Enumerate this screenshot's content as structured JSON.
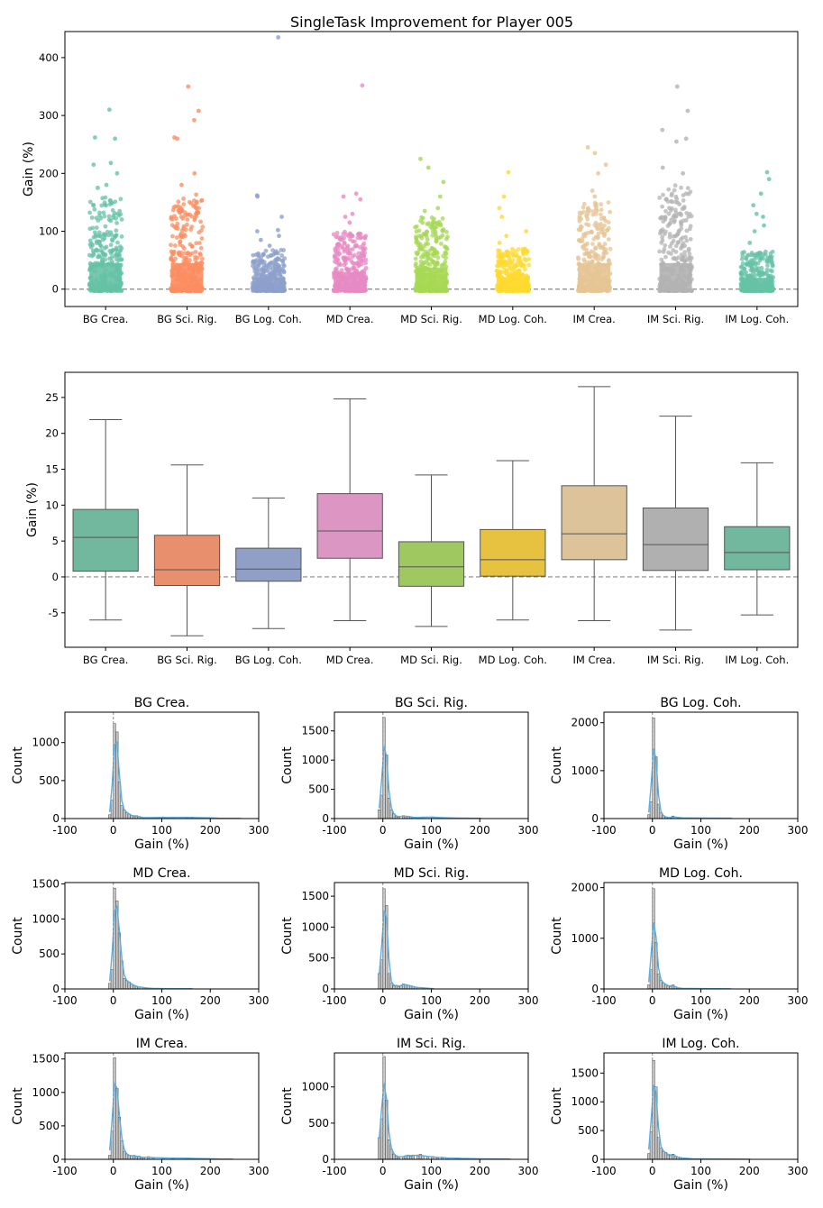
{
  "figure_title": "SingleTask Improvement for Player 005",
  "colors": {
    "strip": [
      "#66c2a5",
      "#fc8d62",
      "#8da0cb",
      "#e78ac3",
      "#a6d854",
      "#ffd92f",
      "#e5c494",
      "#b3b3b3",
      "#66c2a5"
    ],
    "box": [
      "#71b89f",
      "#e8906d",
      "#8f9fc6",
      "#dc96c3",
      "#9fc861",
      "#e6c240",
      "#dcc39a",
      "#b0b0b0",
      "#71b89f"
    ],
    "hist_bar": "#b9b9b9",
    "kde_line": "#5aaee0",
    "zero_line": "#888888"
  },
  "chart_data": [
    {
      "type": "scatter",
      "subtype": "strip",
      "title": "SingleTask Improvement for Player 005",
      "xlabel": "",
      "ylabel": "Gain (%)",
      "categories": [
        "BG Crea.",
        "BG Sci. Rig.",
        "BG Log. Coh.",
        "MD Crea.",
        "MD Sci. Rig.",
        "MD Log. Coh.",
        "IM Crea.",
        "IM Sci. Rig.",
        "IM Log. Coh."
      ],
      "ylim": [
        -30,
        445
      ],
      "yticks": [
        0,
        100,
        200,
        300,
        400
      ],
      "reference_line_y": 0,
      "series": [
        {
          "category": "BG Crea.",
          "dense_max": 160,
          "outliers": [
            175,
            180,
            200,
            215,
            218,
            260,
            262,
            310
          ]
        },
        {
          "category": "BG Sci. Rig.",
          "dense_max": 165,
          "outliers": [
            180,
            200,
            260,
            262,
            292,
            308,
            350
          ]
        },
        {
          "category": "BG Log. Coh.",
          "dense_max": 68,
          "outliers": [
            75,
            85,
            92,
            100,
            102,
            125,
            160,
            162,
            435
          ]
        },
        {
          "category": "MD Crea.",
          "dense_max": 100,
          "outliers": [
            115,
            125,
            130,
            155,
            160,
            165,
            352
          ]
        },
        {
          "category": "MD Sci. Rig.",
          "dense_max": 125,
          "outliers": [
            135,
            140,
            160,
            185,
            210,
            225
          ]
        },
        {
          "category": "MD Log. Coh.",
          "dense_max": 70,
          "outliers": [
            80,
            92,
            100,
            125,
            140,
            160,
            202
          ]
        },
        {
          "category": "IM Crea.",
          "dense_max": 150,
          "outliers": [
            160,
            170,
            200,
            215,
            235,
            245
          ]
        },
        {
          "category": "IM Sci. Rig.",
          "dense_max": 180,
          "outliers": [
            200,
            210,
            255,
            260,
            275,
            308,
            350
          ]
        },
        {
          "category": "IM Log. Coh.",
          "dense_max": 65,
          "outliers": [
            80,
            100,
            110,
            125,
            130,
            145,
            165,
            190,
            202
          ]
        }
      ]
    },
    {
      "type": "box",
      "title": "",
      "xlabel": "",
      "ylabel": "Gain (%)",
      "categories": [
        "BG Crea.",
        "BG Sci. Rig.",
        "BG Log. Coh.",
        "MD Crea.",
        "MD Sci. Rig.",
        "MD Log. Coh.",
        "IM Crea.",
        "IM Sci. Rig.",
        "IM Log. Coh."
      ],
      "ylim": [
        -9.8,
        28.5
      ],
      "yticks": [
        -5,
        0,
        5,
        10,
        15,
        20,
        25
      ],
      "reference_line_y": 0,
      "boxes": [
        {
          "whislo": -6.0,
          "q1": 0.8,
          "med": 5.5,
          "q3": 9.4,
          "whishi": 21.9
        },
        {
          "whislo": -8.2,
          "q1": -1.2,
          "med": 1.0,
          "q3": 5.8,
          "whishi": 15.6
        },
        {
          "whislo": -7.2,
          "q1": -0.6,
          "med": 1.1,
          "q3": 4.0,
          "whishi": 11.0
        },
        {
          "whislo": -6.1,
          "q1": 2.6,
          "med": 6.4,
          "q3": 11.6,
          "whishi": 24.8
        },
        {
          "whislo": -6.9,
          "q1": -1.3,
          "med": 1.4,
          "q3": 4.9,
          "whishi": 14.2
        },
        {
          "whislo": -6.0,
          "q1": 0.1,
          "med": 2.4,
          "q3": 6.6,
          "whishi": 16.2
        },
        {
          "whislo": -6.1,
          "q1": 2.4,
          "med": 6.0,
          "q3": 12.7,
          "whishi": 26.5
        },
        {
          "whislo": -7.4,
          "q1": 0.9,
          "med": 4.5,
          "q3": 9.6,
          "whishi": 22.4
        },
        {
          "whislo": -5.3,
          "q1": 1.0,
          "med": 3.4,
          "q3": 7.0,
          "whishi": 15.9
        }
      ]
    },
    {
      "type": "bar",
      "subtype": "histogram",
      "title": "BG Crea.",
      "xlabel": "Gain (%)",
      "ylabel": "Count",
      "xlim": [
        -100,
        300
      ],
      "xticks": [
        -100,
        0,
        100,
        200,
        300
      ],
      "ylim": [
        0,
        1400
      ],
      "yticks": [
        0,
        500,
        1000
      ],
      "bin_width": 5,
      "bins": [
        [
          -10,
          50
        ],
        [
          -5,
          240
        ],
        [
          0,
          1250
        ],
        [
          5,
          1140
        ],
        [
          10,
          480
        ],
        [
          15,
          170
        ],
        [
          20,
          110
        ],
        [
          25,
          80
        ],
        [
          30,
          60
        ],
        [
          35,
          40
        ],
        [
          40,
          30
        ],
        [
          45,
          40
        ],
        [
          50,
          25
        ],
        [
          55,
          20
        ],
        [
          60,
          10
        ],
        [
          70,
          10
        ],
        [
          100,
          22
        ],
        [
          110,
          8
        ],
        [
          120,
          20
        ],
        [
          150,
          12
        ],
        [
          160,
          20
        ],
        [
          200,
          6
        ],
        [
          215,
          5
        ],
        [
          260,
          4
        ],
        [
          310,
          2
        ]
      ]
    },
    {
      "type": "bar",
      "subtype": "histogram",
      "title": "BG Sci. Rig.",
      "xlabel": "Gain (%)",
      "ylabel": "Count",
      "xlim": [
        -100,
        300
      ],
      "xticks": [
        -100,
        0,
        100,
        200,
        300
      ],
      "ylim": [
        0,
        1820
      ],
      "yticks": [
        0,
        500,
        1000,
        1500
      ],
      "bin_width": 5,
      "bins": [
        [
          -10,
          150
        ],
        [
          -5,
          400
        ],
        [
          0,
          1730
        ],
        [
          5,
          1090
        ],
        [
          10,
          350
        ],
        [
          15,
          150
        ],
        [
          20,
          80
        ],
        [
          25,
          40
        ],
        [
          30,
          25
        ],
        [
          40,
          50
        ],
        [
          45,
          35
        ],
        [
          50,
          40
        ],
        [
          55,
          30
        ],
        [
          60,
          20
        ],
        [
          70,
          15
        ],
        [
          80,
          25
        ],
        [
          100,
          30
        ],
        [
          120,
          10
        ],
        [
          150,
          10
        ],
        [
          200,
          5
        ]
      ]
    },
    {
      "type": "bar",
      "subtype": "histogram",
      "title": "BG Log. Coh.",
      "xlabel": "Gain (%)",
      "ylabel": "Count",
      "xlim": [
        -100,
        300
      ],
      "xticks": [
        -100,
        0,
        100,
        200,
        300
      ],
      "ylim": [
        0,
        2220
      ],
      "yticks": [
        0,
        1000,
        2000
      ],
      "bin_width": 5,
      "bins": [
        [
          -10,
          80
        ],
        [
          -5,
          350
        ],
        [
          0,
          2100
        ],
        [
          5,
          1290
        ],
        [
          10,
          300
        ],
        [
          15,
          120
        ],
        [
          20,
          60
        ],
        [
          25,
          30
        ],
        [
          30,
          20
        ],
        [
          35,
          15
        ],
        [
          40,
          50
        ],
        [
          50,
          20
        ],
        [
          60,
          10
        ],
        [
          100,
          15
        ],
        [
          160,
          8
        ]
      ]
    },
    {
      "type": "bar",
      "subtype": "histogram",
      "title": "MD Crea.",
      "xlabel": "Gain (%)",
      "ylabel": "Count",
      "xlim": [
        -100,
        300
      ],
      "xticks": [
        -100,
        0,
        100,
        200,
        300
      ],
      "ylim": [
        0,
        1520
      ],
      "yticks": [
        0,
        500,
        1000,
        1500
      ],
      "bin_width": 5,
      "bins": [
        [
          -10,
          80
        ],
        [
          -5,
          280
        ],
        [
          0,
          1440
        ],
        [
          5,
          1260
        ],
        [
          10,
          800
        ],
        [
          15,
          400
        ],
        [
          20,
          150
        ],
        [
          25,
          120
        ],
        [
          30,
          100
        ],
        [
          35,
          70
        ],
        [
          40,
          50
        ],
        [
          45,
          40
        ],
        [
          50,
          30
        ],
        [
          60,
          20
        ],
        [
          70,
          10
        ],
        [
          80,
          8
        ],
        [
          90,
          6
        ],
        [
          100,
          5
        ],
        [
          160,
          4
        ]
      ]
    },
    {
      "type": "bar",
      "subtype": "histogram",
      "title": "MD Sci. Rig.",
      "xlabel": "Gain (%)",
      "ylabel": "Count",
      "xlim": [
        -100,
        300
      ],
      "xticks": [
        -100,
        0,
        100,
        200,
        300
      ],
      "ylim": [
        0,
        1720
      ],
      "yticks": [
        0,
        500,
        1000,
        1500
      ],
      "bin_width": 5,
      "bins": [
        [
          -10,
          250
        ],
        [
          -5,
          470
        ],
        [
          0,
          1620
        ],
        [
          5,
          1350
        ],
        [
          10,
          250
        ],
        [
          15,
          90
        ],
        [
          20,
          50
        ],
        [
          25,
          60
        ],
        [
          30,
          40
        ],
        [
          35,
          50
        ],
        [
          40,
          80
        ],
        [
          45,
          70
        ],
        [
          50,
          60
        ],
        [
          55,
          50
        ],
        [
          60,
          40
        ],
        [
          65,
          30
        ],
        [
          70,
          25
        ],
        [
          80,
          20
        ],
        [
          90,
          10
        ],
        [
          100,
          8
        ]
      ]
    },
    {
      "type": "bar",
      "subtype": "histogram",
      "title": "MD Log. Coh.",
      "xlabel": "Gain (%)",
      "ylabel": "Count",
      "xlim": [
        -100,
        300
      ],
      "xticks": [
        -100,
        0,
        100,
        200,
        300
      ],
      "ylim": [
        0,
        2100
      ],
      "yticks": [
        0,
        1000,
        2000
      ],
      "bin_width": 5,
      "bins": [
        [
          -10,
          80
        ],
        [
          -5,
          380
        ],
        [
          0,
          1980
        ],
        [
          5,
          920
        ],
        [
          10,
          300
        ],
        [
          15,
          170
        ],
        [
          20,
          120
        ],
        [
          25,
          90
        ],
        [
          30,
          60
        ],
        [
          35,
          50
        ],
        [
          40,
          80
        ],
        [
          45,
          40
        ],
        [
          50,
          20
        ],
        [
          60,
          10
        ],
        [
          100,
          6
        ],
        [
          160,
          4
        ]
      ]
    },
    {
      "type": "bar",
      "subtype": "histogram",
      "title": "IM Crea.",
      "xlabel": "Gain (%)",
      "ylabel": "Count",
      "xlim": [
        -100,
        300
      ],
      "xticks": [
        -100,
        0,
        100,
        200,
        300
      ],
      "ylim": [
        0,
        1590
      ],
      "yticks": [
        0,
        500,
        1000,
        1500
      ],
      "bin_width": 5,
      "bins": [
        [
          -10,
          60
        ],
        [
          -5,
          420
        ],
        [
          0,
          1520
        ],
        [
          5,
          1060
        ],
        [
          10,
          630
        ],
        [
          15,
          280
        ],
        [
          20,
          120
        ],
        [
          25,
          80
        ],
        [
          30,
          60
        ],
        [
          35,
          50
        ],
        [
          40,
          60
        ],
        [
          45,
          40
        ],
        [
          50,
          50
        ],
        [
          55,
          30
        ],
        [
          60,
          25
        ],
        [
          70,
          40
        ],
        [
          80,
          20
        ],
        [
          100,
          25
        ],
        [
          120,
          15
        ],
        [
          150,
          20
        ],
        [
          160,
          15
        ],
        [
          200,
          8
        ],
        [
          215,
          5
        ],
        [
          245,
          3
        ]
      ]
    },
    {
      "type": "bar",
      "subtype": "histogram",
      "title": "IM Sci. Rig.",
      "xlabel": "Gain (%)",
      "ylabel": "Count",
      "xlim": [
        -100,
        300
      ],
      "xticks": [
        -100,
        0,
        100,
        200,
        300
      ],
      "ylim": [
        0,
        1470
      ],
      "yticks": [
        0,
        500,
        1000
      ],
      "bin_width": 5,
      "bins": [
        [
          -10,
          300
        ],
        [
          -5,
          560
        ],
        [
          0,
          1420
        ],
        [
          5,
          820
        ],
        [
          10,
          270
        ],
        [
          15,
          140
        ],
        [
          20,
          70
        ],
        [
          25,
          50
        ],
        [
          30,
          25
        ],
        [
          40,
          40
        ],
        [
          45,
          50
        ],
        [
          50,
          60
        ],
        [
          55,
          40
        ],
        [
          60,
          60
        ],
        [
          70,
          50
        ],
        [
          75,
          70
        ],
        [
          80,
          50
        ],
        [
          90,
          35
        ],
        [
          100,
          40
        ],
        [
          110,
          20
        ],
        [
          120,
          30
        ],
        [
          130,
          15
        ],
        [
          150,
          20
        ],
        [
          160,
          10
        ],
        [
          200,
          8
        ],
        [
          260,
          4
        ],
        [
          310,
          2
        ],
        [
          350,
          2
        ]
      ]
    },
    {
      "type": "bar",
      "subtype": "histogram",
      "title": "IM Log. Coh.",
      "xlabel": "Gain (%)",
      "ylabel": "Count",
      "xlim": [
        -100,
        300
      ],
      "xticks": [
        -100,
        0,
        100,
        200,
        300
      ],
      "ylim": [
        0,
        1850
      ],
      "yticks": [
        0,
        500,
        1000,
        1500
      ],
      "bin_width": 5,
      "bins": [
        [
          -10,
          100
        ],
        [
          -5,
          480
        ],
        [
          0,
          1720
        ],
        [
          5,
          1260
        ],
        [
          10,
          380
        ],
        [
          15,
          200
        ],
        [
          20,
          140
        ],
        [
          25,
          120
        ],
        [
          30,
          80
        ],
        [
          35,
          70
        ],
        [
          40,
          90
        ],
        [
          45,
          50
        ],
        [
          50,
          40
        ],
        [
          55,
          30
        ],
        [
          60,
          20
        ],
        [
          70,
          15
        ],
        [
          80,
          10
        ],
        [
          100,
          8
        ],
        [
          130,
          5
        ],
        [
          165,
          4
        ],
        [
          200,
          3
        ]
      ]
    }
  ]
}
